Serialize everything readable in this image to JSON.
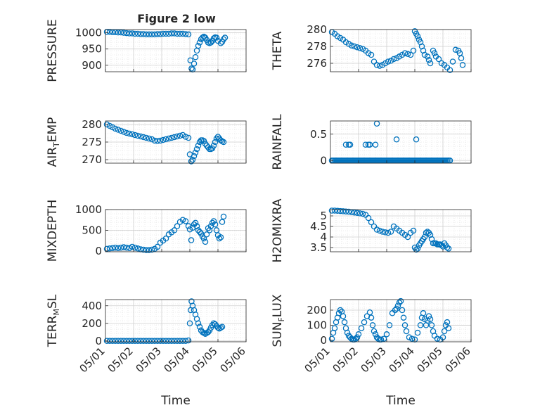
{
  "figure_title": "Figure 2 low",
  "colors": {
    "marker": "#0072BD",
    "axis": "#262626",
    "grid": "#dcdcdc",
    "background": "#ffffff"
  },
  "chart_data": [
    {
      "type": "scatter",
      "title": "Figure 2 low",
      "ylabel": "PRESSURE",
      "ylim": [
        880,
        1010
      ],
      "yticks": [
        900,
        950,
        1000
      ],
      "xlim": [
        0,
        5
      ],
      "xticks": [],
      "x": [
        0.05,
        0.15,
        0.25,
        0.35,
        0.45,
        0.55,
        0.65,
        0.75,
        0.85,
        0.95,
        1.05,
        1.15,
        1.25,
        1.35,
        1.45,
        1.55,
        1.65,
        1.75,
        1.85,
        1.95,
        2.05,
        2.15,
        2.25,
        2.35,
        2.45,
        2.55,
        2.65,
        2.75,
        2.85,
        2.95,
        3.02,
        3.06,
        3.1,
        3.15,
        3.2,
        3.25,
        3.3,
        3.35,
        3.4,
        3.45,
        3.5,
        3.55,
        3.6,
        3.65,
        3.7,
        3.75,
        3.8,
        3.85,
        3.9,
        3.95,
        4.0,
        4.1,
        4.15,
        4.2,
        4.25
      ],
      "y": [
        1003,
        1003,
        1002,
        1002,
        1001,
        1001,
        1000,
        999,
        998,
        998,
        997,
        997,
        996,
        996,
        995,
        995,
        995,
        995,
        996,
        996,
        997,
        997,
        997,
        998,
        998,
        997,
        997,
        997,
        996,
        995,
        915,
        890,
        887,
        905,
        925,
        945,
        960,
        970,
        980,
        985,
        988,
        985,
        978,
        970,
        968,
        970,
        975,
        983,
        986,
        985,
        975,
        968,
        972,
        980,
        985
      ]
    },
    {
      "type": "scatter",
      "ylabel": "THETA",
      "ylim": [
        275,
        280
      ],
      "yticks": [
        276,
        278,
        280
      ],
      "xlim": [
        0,
        5
      ],
      "xticks": [],
      "x": [
        0.05,
        0.15,
        0.25,
        0.35,
        0.45,
        0.55,
        0.65,
        0.75,
        0.85,
        0.95,
        1.05,
        1.15,
        1.25,
        1.35,
        1.45,
        1.55,
        1.65,
        1.75,
        1.85,
        1.95,
        2.05,
        2.15,
        2.25,
        2.35,
        2.45,
        2.55,
        2.65,
        2.75,
        2.85,
        2.95,
        3.0,
        3.05,
        3.1,
        3.15,
        3.2,
        3.25,
        3.3,
        3.35,
        3.45,
        3.5,
        3.55,
        3.65,
        3.7,
        3.75,
        3.85,
        3.95,
        4.05,
        4.15,
        4.25,
        4.35,
        4.45,
        4.55,
        4.6,
        4.65,
        4.7
      ],
      "y": [
        279.7,
        279.5,
        279.2,
        279.0,
        278.8,
        278.5,
        278.3,
        278.1,
        278.0,
        277.9,
        277.8,
        277.7,
        277.5,
        277.2,
        277.0,
        276.2,
        275.8,
        275.7,
        275.8,
        276.0,
        276.2,
        276.3,
        276.5,
        276.6,
        276.8,
        277.0,
        277.2,
        277.1,
        277.0,
        277.5,
        279.8,
        279.5,
        279.2,
        278.8,
        278.5,
        278.0,
        277.5,
        277.0,
        276.8,
        276.4,
        276.0,
        277.5,
        277.2,
        276.8,
        276.5,
        276.0,
        275.8,
        275.5,
        275.2,
        276.2,
        277.6,
        277.5,
        277.2,
        276.6,
        275.8
      ]
    },
    {
      "type": "scatter",
      "ylabel": "AIR_TEMP",
      "ylim": [
        269,
        281
      ],
      "yticks": [
        270,
        275,
        280
      ],
      "xlim": [
        0,
        5
      ],
      "xticks": [],
      "x": [
        0.05,
        0.15,
        0.25,
        0.35,
        0.45,
        0.55,
        0.65,
        0.75,
        0.85,
        0.95,
        1.05,
        1.15,
        1.25,
        1.35,
        1.45,
        1.55,
        1.65,
        1.75,
        1.85,
        1.95,
        2.05,
        2.15,
        2.25,
        2.35,
        2.45,
        2.55,
        2.65,
        2.75,
        2.85,
        2.95,
        3.0,
        3.05,
        3.1,
        3.15,
        3.2,
        3.25,
        3.3,
        3.35,
        3.4,
        3.45,
        3.5,
        3.55,
        3.6,
        3.65,
        3.7,
        3.75,
        3.8,
        3.85,
        3.9,
        3.95,
        4.0,
        4.05,
        4.1,
        4.15,
        4.2
      ],
      "y": [
        280,
        279.6,
        279.2,
        278.8,
        278.5,
        278.2,
        277.9,
        277.6,
        277.4,
        277.2,
        277.0,
        276.8,
        276.6,
        276.4,
        276.2,
        276.0,
        275.8,
        275.4,
        275.3,
        275.4,
        275.6,
        275.8,
        276.0,
        276.2,
        276.4,
        276.6,
        276.8,
        277.0,
        276.5,
        276.2,
        271.5,
        269.5,
        270.0,
        271.0,
        272.0,
        273.0,
        274.0,
        275.0,
        275.5,
        275.5,
        275.3,
        274.5,
        274.0,
        273.5,
        273.0,
        273.0,
        273.2,
        274.0,
        275.0,
        276.0,
        276.5,
        276.0,
        275.5,
        275.2,
        275.0
      ]
    },
    {
      "type": "scatter",
      "ylabel": "RAINFALL",
      "ylim": [
        -0.05,
        0.75
      ],
      "yticks": [
        0,
        0.5
      ],
      "xlim": [
        0,
        5
      ],
      "xticks": [],
      "x": [
        0.05,
        0.1,
        0.15,
        0.2,
        0.25,
        0.3,
        0.35,
        0.4,
        0.45,
        0.5,
        0.55,
        0.6,
        0.65,
        0.7,
        0.75,
        0.8,
        0.85,
        0.9,
        0.95,
        1.0,
        1.05,
        1.1,
        1.15,
        1.2,
        1.25,
        1.3,
        1.35,
        1.4,
        1.45,
        1.5,
        1.55,
        1.6,
        1.65,
        1.7,
        1.75,
        1.8,
        1.85,
        1.9,
        1.95,
        2.0,
        2.05,
        2.1,
        2.15,
        2.2,
        2.25,
        2.3,
        2.35,
        2.4,
        2.45,
        2.5,
        2.55,
        2.6,
        2.65,
        2.7,
        2.75,
        2.8,
        2.85,
        2.9,
        2.95,
        3.0,
        3.05,
        3.1,
        3.15,
        3.2,
        3.25,
        3.3,
        3.35,
        3.4,
        3.45,
        3.5,
        3.55,
        3.6,
        3.65,
        3.7,
        3.75,
        3.8,
        3.85,
        3.9,
        3.95,
        4.0,
        4.05,
        4.1,
        4.15,
        4.2,
        4.25,
        0.55,
        0.65,
        0.7,
        1.25,
        1.35,
        1.4,
        1.6,
        1.65,
        2.35,
        3.05
      ],
      "y": [
        0,
        0,
        0,
        0,
        0,
        0,
        0,
        0,
        0,
        0,
        0,
        0,
        0,
        0,
        0,
        0,
        0,
        0,
        0,
        0,
        0,
        0,
        0,
        0,
        0,
        0,
        0,
        0,
        0,
        0,
        0,
        0,
        0,
        0,
        0,
        0,
        0,
        0,
        0,
        0,
        0,
        0,
        0,
        0,
        0,
        0,
        0,
        0,
        0,
        0,
        0,
        0,
        0,
        0,
        0,
        0,
        0,
        0,
        0,
        0,
        0,
        0,
        0,
        0,
        0,
        0,
        0,
        0,
        0,
        0,
        0,
        0,
        0,
        0,
        0,
        0,
        0,
        0,
        0,
        0,
        0,
        0,
        0,
        0,
        0,
        0.3,
        0.3,
        0.3,
        0.3,
        0.3,
        0.3,
        0.3,
        0.7,
        0.4,
        0.4
      ]
    },
    {
      "type": "scatter",
      "ylabel": "MIXDEPTH",
      "ylim": [
        -20,
        1000
      ],
      "yticks": [
        0,
        500,
        1000
      ],
      "xlim": [
        0,
        5
      ],
      "xticks": [],
      "x": [
        0.05,
        0.15,
        0.25,
        0.35,
        0.45,
        0.55,
        0.65,
        0.75,
        0.85,
        0.95,
        1.05,
        1.15,
        1.25,
        1.35,
        1.45,
        1.55,
        1.65,
        1.75,
        1.85,
        1.95,
        2.05,
        2.15,
        2.25,
        2.35,
        2.45,
        2.55,
        2.65,
        2.75,
        2.85,
        2.95,
        3.0,
        3.05,
        3.1,
        3.15,
        3.2,
        3.25,
        3.3,
        3.35,
        3.4,
        3.45,
        3.5,
        3.55,
        3.6,
        3.65,
        3.7,
        3.75,
        3.8,
        3.85,
        3.9,
        3.95,
        4.0,
        4.05,
        4.1,
        4.15,
        4.2
      ],
      "y": [
        50,
        60,
        70,
        80,
        70,
        80,
        90,
        80,
        70,
        100,
        80,
        60,
        40,
        30,
        20,
        20,
        30,
        50,
        100,
        200,
        250,
        300,
        400,
        450,
        500,
        600,
        700,
        750,
        720,
        600,
        520,
        260,
        560,
        640,
        680,
        600,
        500,
        460,
        420,
        350,
        300,
        220,
        400,
        550,
        500,
        600,
        680,
        720,
        640,
        500,
        380,
        300,
        330,
        700,
        830
      ]
    },
    {
      "type": "scatter",
      "ylabel": "H2OMIXRA",
      "ylim": [
        3.3,
        5.3
      ],
      "yticks": [
        3.5,
        4,
        4.5,
        5
      ],
      "xlim": [
        0,
        5
      ],
      "xticks": [],
      "x": [
        0.05,
        0.15,
        0.25,
        0.35,
        0.45,
        0.55,
        0.65,
        0.75,
        0.85,
        0.95,
        1.05,
        1.15,
        1.25,
        1.35,
        1.45,
        1.55,
        1.65,
        1.75,
        1.85,
        1.95,
        2.05,
        2.15,
        2.25,
        2.35,
        2.45,
        2.55,
        2.65,
        2.75,
        2.85,
        2.95,
        3.0,
        3.05,
        3.1,
        3.15,
        3.2,
        3.25,
        3.3,
        3.35,
        3.4,
        3.45,
        3.5,
        3.55,
        3.6,
        3.65,
        3.7,
        3.75,
        3.8,
        3.85,
        3.9,
        3.95,
        4.0,
        4.05,
        4.1,
        4.15,
        4.2
      ],
      "y": [
        5.25,
        5.25,
        5.24,
        5.23,
        5.22,
        5.21,
        5.2,
        5.18,
        5.16,
        5.14,
        5.12,
        5.1,
        5.05,
        4.9,
        4.7,
        4.5,
        4.35,
        4.3,
        4.25,
        4.22,
        4.2,
        4.25,
        4.5,
        4.4,
        4.3,
        4.2,
        4.1,
        4.0,
        4.2,
        4.3,
        3.5,
        3.4,
        3.45,
        3.6,
        3.7,
        3.8,
        3.9,
        4.0,
        4.2,
        4.25,
        4.2,
        4.1,
        3.9,
        3.7,
        3.7,
        3.7,
        3.65,
        3.65,
        3.65,
        3.6,
        3.55,
        3.7,
        3.6,
        3.5,
        3.45
      ]
    },
    {
      "type": "scatter",
      "ylabel": "TERR_MSL",
      "ylim": [
        -10,
        470
      ],
      "yticks": [
        0,
        200,
        400
      ],
      "xlim": [
        0,
        5
      ],
      "xticks": [
        "05/01",
        "05/02",
        "05/03",
        "05/04",
        "05/05",
        "05/06"
      ],
      "xlabel": "Time",
      "x": [
        0.05,
        0.15,
        0.25,
        0.35,
        0.45,
        0.55,
        0.65,
        0.75,
        0.85,
        0.95,
        1.05,
        1.15,
        1.25,
        1.35,
        1.45,
        1.55,
        1.65,
        1.75,
        1.85,
        1.95,
        2.05,
        2.15,
        2.25,
        2.35,
        2.45,
        2.55,
        2.65,
        2.75,
        2.85,
        2.95,
        3.0,
        3.03,
        3.06,
        3.1,
        3.15,
        3.2,
        3.25,
        3.3,
        3.35,
        3.4,
        3.45,
        3.5,
        3.55,
        3.6,
        3.65,
        3.7,
        3.75,
        3.8,
        3.85,
        3.9,
        3.95,
        4.0,
        4.05,
        4.1,
        4.15
      ],
      "y": [
        0,
        0,
        0,
        0,
        0,
        0,
        0,
        0,
        0,
        0,
        0,
        0,
        0,
        0,
        0,
        0,
        0,
        0,
        0,
        0,
        0,
        0,
        0,
        0,
        0,
        0,
        0,
        0,
        0,
        5,
        200,
        350,
        450,
        400,
        350,
        300,
        250,
        200,
        160,
        120,
        100,
        90,
        80,
        90,
        100,
        120,
        150,
        180,
        200,
        190,
        170,
        150,
        140,
        150,
        160
      ]
    },
    {
      "type": "scatter",
      "ylabel": "SUN_FLUX",
      "ylim": [
        -10,
        270
      ],
      "yticks": [
        0,
        100,
        200
      ],
      "xlim": [
        0,
        5
      ],
      "xticks": [
        "05/01",
        "05/02",
        "05/03",
        "05/04",
        "05/05",
        "05/06"
      ],
      "xlabel": "Time",
      "x": [
        0.05,
        0.1,
        0.15,
        0.2,
        0.25,
        0.3,
        0.35,
        0.4,
        0.45,
        0.5,
        0.55,
        0.6,
        0.65,
        0.7,
        0.75,
        0.8,
        0.85,
        0.9,
        0.95,
        1.0,
        1.1,
        1.2,
        1.3,
        1.4,
        1.45,
        1.5,
        1.55,
        1.6,
        1.65,
        1.7,
        1.75,
        1.8,
        1.9,
        2.0,
        2.1,
        2.2,
        2.3,
        2.35,
        2.4,
        2.45,
        2.5,
        2.55,
        2.6,
        2.65,
        2.7,
        2.8,
        2.9,
        3.0,
        3.1,
        3.2,
        3.25,
        3.3,
        3.35,
        3.4,
        3.45,
        3.5,
        3.55,
        3.6,
        3.65,
        3.7,
        3.8,
        3.9,
        4.0,
        4.05,
        4.1,
        4.15,
        4.2
      ],
      "y": [
        10,
        50,
        80,
        120,
        150,
        180,
        200,
        190,
        160,
        120,
        80,
        50,
        30,
        20,
        10,
        5,
        5,
        10,
        20,
        40,
        80,
        120,
        160,
        185,
        150,
        100,
        60,
        40,
        20,
        10,
        5,
        5,
        10,
        40,
        100,
        180,
        200,
        210,
        230,
        250,
        260,
        200,
        150,
        100,
        60,
        20,
        10,
        5,
        50,
        100,
        150,
        180,
        140,
        100,
        130,
        160,
        140,
        100,
        60,
        30,
        10,
        5,
        20,
        60,
        100,
        120,
        80
      ]
    }
  ]
}
